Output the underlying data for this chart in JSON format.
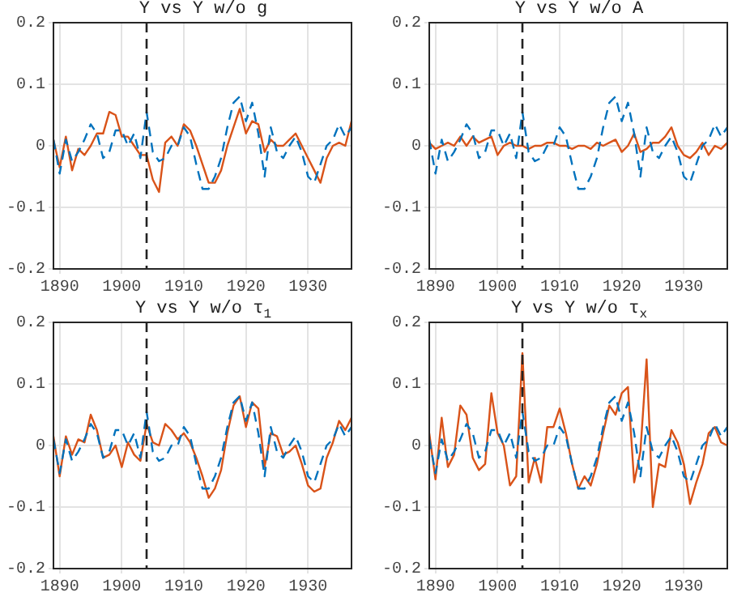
{
  "chart_data": [
    {
      "type": "line",
      "title": "Y vs Y w/o g",
      "x": [
        1889,
        1890,
        1891,
        1892,
        1893,
        1894,
        1895,
        1896,
        1897,
        1898,
        1899,
        1900,
        1901,
        1902,
        1903,
        1904,
        1905,
        1906,
        1907,
        1908,
        1909,
        1910,
        1911,
        1912,
        1913,
        1914,
        1915,
        1916,
        1917,
        1918,
        1919,
        1920,
        1921,
        1922,
        1923,
        1924,
        1925,
        1926,
        1927,
        1928,
        1929,
        1930,
        1931,
        1932,
        1933,
        1934,
        1935,
        1936,
        1937
      ],
      "series": [
        {
          "color": "#0072bd",
          "line_style": "dashed",
          "values": [
            0.01,
            -0.045,
            0.01,
            -0.025,
            -0.01,
            0.01,
            0.035,
            0.02,
            -0.02,
            -0.01,
            0.025,
            0.025,
            0.0,
            0.02,
            -0.02,
            0.055,
            -0.01,
            -0.025,
            -0.02,
            0.0,
            0.0,
            0.03,
            0.015,
            -0.03,
            -0.07,
            -0.07,
            -0.05,
            -0.02,
            0.03,
            0.07,
            0.08,
            0.04,
            0.07,
            0.02,
            -0.05,
            0.03,
            -0.01,
            -0.02,
            0.0,
            0.015,
            -0.01,
            -0.05,
            -0.06,
            -0.03,
            0.0,
            0.01,
            0.035,
            0.015,
            0.03
          ]
        },
        {
          "color": "#d95319",
          "line_style": "solid",
          "values": [
            0.01,
            -0.035,
            0.015,
            -0.04,
            -0.005,
            -0.015,
            0.0,
            0.02,
            0.02,
            0.055,
            0.05,
            0.015,
            0.015,
            0.0,
            -0.015,
            -0.015,
            -0.055,
            -0.075,
            0.005,
            0.015,
            0.0,
            0.035,
            0.025,
            0.0,
            -0.03,
            -0.06,
            -0.06,
            -0.04,
            0.0,
            0.03,
            0.06,
            0.02,
            0.04,
            0.035,
            -0.01,
            0.01,
            0.0,
            0.0,
            0.01,
            0.02,
            0.0,
            -0.02,
            -0.04,
            -0.06,
            -0.02,
            0.0,
            0.005,
            0.0,
            0.04
          ]
        }
      ],
      "xlim": [
        1889,
        1937
      ],
      "xticks": [
        1890,
        1900,
        1910,
        1920,
        1930
      ],
      "ylim": [
        -0.2,
        0.2
      ],
      "yticks": [
        -0.2,
        -0.1,
        0,
        0.1,
        0.2
      ],
      "ref_lines": [
        {
          "axis": "x",
          "value": 1904,
          "color": "#222222",
          "line_style": "dashed"
        }
      ],
      "grid": true,
      "legend": false,
      "marker": "none"
    },
    {
      "type": "line",
      "title": "Y vs Y w/o A",
      "x": [
        1889,
        1890,
        1891,
        1892,
        1893,
        1894,
        1895,
        1896,
        1897,
        1898,
        1899,
        1900,
        1901,
        1902,
        1903,
        1904,
        1905,
        1906,
        1907,
        1908,
        1909,
        1910,
        1911,
        1912,
        1913,
        1914,
        1915,
        1916,
        1917,
        1918,
        1919,
        1920,
        1921,
        1922,
        1923,
        1924,
        1925,
        1926,
        1927,
        1928,
        1929,
        1930,
        1931,
        1932,
        1933,
        1934,
        1935,
        1936,
        1937
      ],
      "series": [
        {
          "color": "#0072bd",
          "line_style": "dashed",
          "values": [
            0.01,
            -0.045,
            0.01,
            -0.025,
            -0.01,
            0.01,
            0.035,
            0.02,
            -0.02,
            -0.01,
            0.025,
            0.025,
            0.0,
            0.02,
            -0.02,
            0.055,
            -0.01,
            -0.025,
            -0.02,
            0.0,
            0.0,
            0.03,
            0.015,
            -0.03,
            -0.07,
            -0.07,
            -0.05,
            -0.02,
            0.03,
            0.07,
            0.08,
            0.04,
            0.07,
            0.02,
            -0.05,
            0.03,
            -0.01,
            -0.02,
            0.0,
            0.015,
            -0.01,
            -0.05,
            -0.06,
            -0.03,
            0.0,
            0.01,
            0.035,
            0.015,
            0.03
          ]
        },
        {
          "color": "#d95319",
          "line_style": "solid",
          "values": [
            0.005,
            -0.005,
            0.0,
            0.005,
            0.0,
            0.015,
            0.0,
            0.015,
            0.005,
            0.01,
            0.015,
            -0.015,
            0.0,
            0.005,
            0.0,
            0.0,
            -0.005,
            0.0,
            0.0,
            0.005,
            0.005,
            0.0,
            0.0,
            -0.005,
            0.0,
            0.0,
            -0.005,
            0.005,
            0.0,
            0.005,
            0.01,
            -0.01,
            0.0,
            0.02,
            -0.01,
            -0.005,
            0.005,
            0.005,
            0.015,
            0.03,
            0.0,
            -0.015,
            -0.02,
            -0.01,
            0.005,
            -0.015,
            0.0,
            -0.005,
            0.005
          ]
        }
      ],
      "xlim": [
        1889,
        1937
      ],
      "xticks": [
        1890,
        1900,
        1910,
        1920,
        1930
      ],
      "ylim": [
        -0.2,
        0.2
      ],
      "yticks": [
        -0.2,
        -0.1,
        0,
        0.1,
        0.2
      ],
      "ref_lines": [
        {
          "axis": "x",
          "value": 1904,
          "color": "#222222",
          "line_style": "dashed"
        }
      ],
      "grid": true,
      "legend": false,
      "marker": "none"
    },
    {
      "type": "line",
      "title": "Y vs Y w/o τ$_{1}$",
      "x": [
        1889,
        1890,
        1891,
        1892,
        1893,
        1894,
        1895,
        1896,
        1897,
        1898,
        1899,
        1900,
        1901,
        1902,
        1903,
        1904,
        1905,
        1906,
        1907,
        1908,
        1909,
        1910,
        1911,
        1912,
        1913,
        1914,
        1915,
        1916,
        1917,
        1918,
        1919,
        1920,
        1921,
        1922,
        1923,
        1924,
        1925,
        1926,
        1927,
        1928,
        1929,
        1930,
        1931,
        1932,
        1933,
        1934,
        1935,
        1936,
        1937
      ],
      "series": [
        {
          "color": "#0072bd",
          "line_style": "dashed",
          "values": [
            0.01,
            -0.045,
            0.01,
            -0.025,
            -0.01,
            0.01,
            0.035,
            0.02,
            -0.02,
            -0.01,
            0.025,
            0.025,
            0.0,
            0.02,
            -0.02,
            0.055,
            -0.01,
            -0.025,
            -0.02,
            0.0,
            0.0,
            0.03,
            0.015,
            -0.03,
            -0.07,
            -0.07,
            -0.05,
            -0.02,
            0.03,
            0.07,
            0.08,
            0.04,
            0.07,
            0.02,
            -0.05,
            0.03,
            -0.01,
            -0.02,
            0.0,
            0.015,
            -0.01,
            -0.05,
            -0.06,
            -0.03,
            0.0,
            0.01,
            0.035,
            0.015,
            0.03
          ]
        },
        {
          "color": "#d95319",
          "line_style": "solid",
          "values": [
            0.015,
            -0.05,
            0.015,
            -0.015,
            0.01,
            0.005,
            0.05,
            0.025,
            -0.02,
            -0.015,
            0.0,
            -0.035,
            0.005,
            -0.015,
            -0.025,
            0.035,
            0.005,
            0.0,
            0.035,
            0.025,
            0.01,
            0.02,
            0.005,
            -0.02,
            -0.05,
            -0.085,
            -0.07,
            -0.04,
            0.02,
            0.065,
            0.08,
            0.03,
            0.07,
            0.06,
            -0.035,
            0.02,
            0.015,
            -0.015,
            -0.01,
            0.0,
            -0.03,
            -0.065,
            -0.075,
            -0.07,
            -0.02,
            0.005,
            0.04,
            0.025,
            0.045
          ]
        }
      ],
      "xlim": [
        1889,
        1937
      ],
      "xticks": [
        1890,
        1900,
        1910,
        1920,
        1930
      ],
      "ylim": [
        -0.2,
        0.2
      ],
      "yticks": [
        -0.2,
        -0.1,
        0,
        0.1,
        0.2
      ],
      "ref_lines": [
        {
          "axis": "x",
          "value": 1904,
          "color": "#222222",
          "line_style": "dashed"
        }
      ],
      "grid": true,
      "legend": false,
      "marker": "none"
    },
    {
      "type": "line",
      "title": "Y vs Y w/o τ$_{x}$",
      "x": [
        1889,
        1890,
        1891,
        1892,
        1893,
        1894,
        1895,
        1896,
        1897,
        1898,
        1899,
        1900,
        1901,
        1902,
        1903,
        1904,
        1905,
        1906,
        1907,
        1908,
        1909,
        1910,
        1911,
        1912,
        1913,
        1914,
        1915,
        1916,
        1917,
        1918,
        1919,
        1920,
        1921,
        1922,
        1923,
        1924,
        1925,
        1926,
        1927,
        1928,
        1929,
        1930,
        1931,
        1932,
        1933,
        1934,
        1935,
        1936,
        1937
      ],
      "series": [
        {
          "color": "#0072bd",
          "line_style": "dashed",
          "values": [
            0.01,
            -0.045,
            0.01,
            -0.025,
            -0.01,
            0.01,
            0.035,
            0.02,
            -0.02,
            -0.01,
            0.025,
            0.025,
            0.0,
            0.02,
            -0.02,
            0.055,
            -0.01,
            -0.025,
            -0.02,
            0.0,
            0.0,
            0.03,
            0.015,
            -0.03,
            -0.07,
            -0.07,
            -0.05,
            -0.02,
            0.03,
            0.07,
            0.08,
            0.04,
            0.07,
            0.02,
            -0.05,
            0.03,
            -0.01,
            -0.02,
            0.0,
            0.015,
            -0.01,
            -0.05,
            -0.06,
            -0.03,
            0.0,
            0.01,
            0.035,
            0.015,
            0.03
          ]
        },
        {
          "color": "#d95319",
          "line_style": "solid",
          "values": [
            0.02,
            -0.055,
            0.045,
            -0.035,
            -0.015,
            0.065,
            0.05,
            -0.02,
            -0.04,
            -0.03,
            0.085,
            0.02,
            0.0,
            -0.065,
            -0.05,
            0.15,
            -0.06,
            -0.02,
            -0.06,
            0.03,
            0.03,
            0.06,
            0.02,
            -0.03,
            -0.07,
            -0.05,
            -0.065,
            -0.03,
            0.02,
            0.065,
            0.05,
            0.085,
            0.095,
            -0.06,
            -0.01,
            0.14,
            -0.1,
            -0.03,
            -0.035,
            0.025,
            0.005,
            -0.03,
            -0.095,
            -0.06,
            -0.03,
            0.02,
            0.03,
            0.005,
            0.0
          ]
        }
      ],
      "xlim": [
        1889,
        1937
      ],
      "xticks": [
        1890,
        1900,
        1910,
        1920,
        1930
      ],
      "ylim": [
        -0.2,
        0.2
      ],
      "yticks": [
        -0.2,
        -0.1,
        0,
        0.1,
        0.2
      ],
      "ref_lines": [
        {
          "axis": "x",
          "value": 1904,
          "color": "#222222",
          "line_style": "dashed"
        }
      ],
      "grid": true,
      "legend": false,
      "marker": "none"
    }
  ]
}
